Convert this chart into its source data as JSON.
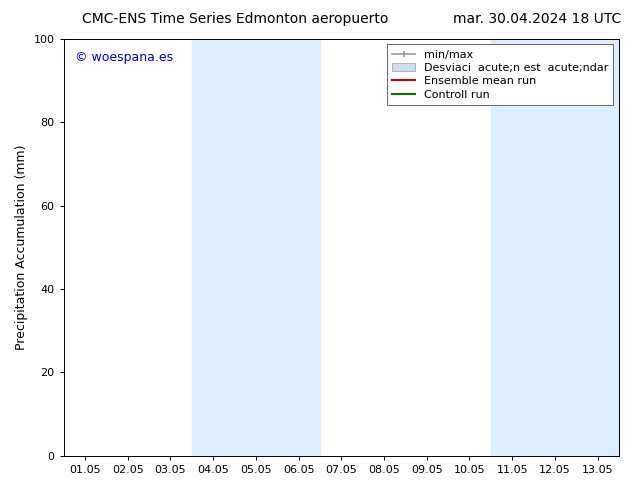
{
  "title_left": "CMC-ENS Time Series Edmonton aeropuerto",
  "title_right": "mar. 30.04.2024 18 UTC",
  "ylabel": "Precipitation Accumulation (mm)",
  "watermark": "© woespana.es",
  "watermark_color": "#0000cc",
  "ylim": [
    0,
    100
  ],
  "yticks": [
    0,
    20,
    40,
    60,
    80,
    100
  ],
  "xtick_labels": [
    "01.05",
    "02.05",
    "03.05",
    "04.05",
    "05.05",
    "06.05",
    "07.05",
    "08.05",
    "09.05",
    "10.05",
    "11.05",
    "12.05",
    "13.05"
  ],
  "shaded_regions": [
    {
      "xstart": 3,
      "xend": 5
    },
    {
      "xstart": 10,
      "xend": 12
    }
  ],
  "shaded_color": "#ddeeff",
  "bg_color": "#ffffff",
  "plot_bg_color": "#ffffff",
  "legend_label_minmax": "min/max",
  "legend_label_std": "Desviaci  acute;n est  acute;ndar",
  "legend_label_ens": "Ensemble mean run",
  "legend_label_ctrl": "Controll run",
  "minmax_color": "#999999",
  "std_color": "#ccddf0",
  "ens_color": "#cc0000",
  "ctrl_color": "#007700",
  "title_fontsize": 10,
  "tick_fontsize": 8,
  "ylabel_fontsize": 9,
  "legend_fontsize": 8,
  "watermark_fontsize": 9
}
